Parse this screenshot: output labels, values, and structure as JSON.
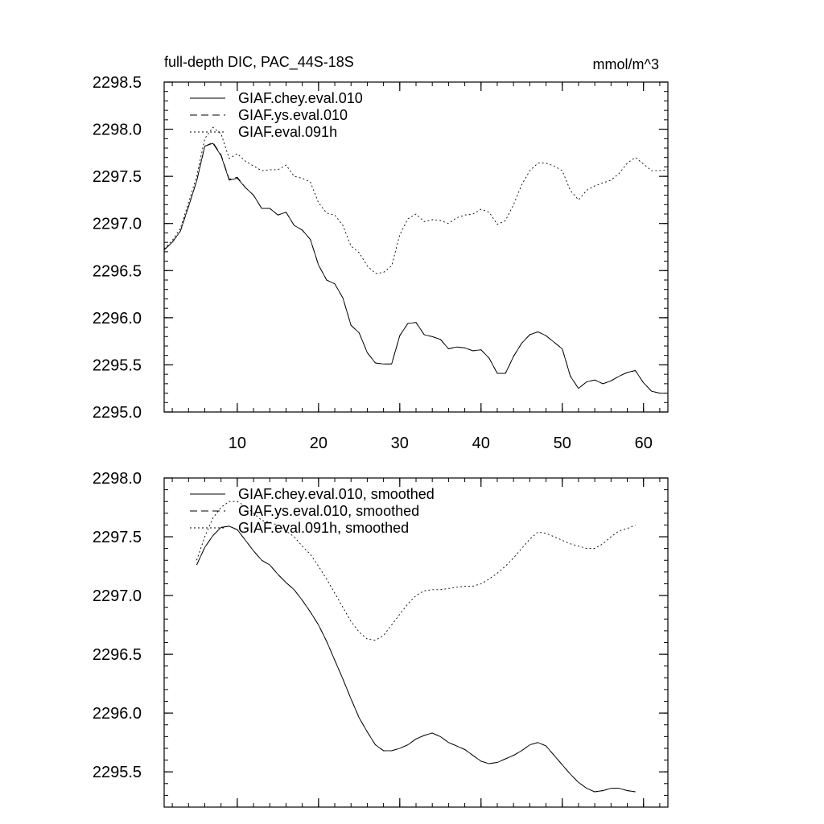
{
  "figure": {
    "title": "full-depth DIC, PAC_44S-18S",
    "units": "mmol/m^3"
  },
  "chart_data": [
    {
      "type": "line",
      "xlim": [
        1,
        63
      ],
      "ylim": [
        2295.0,
        2298.5
      ],
      "x_ticks": [
        10,
        20,
        30,
        40,
        50,
        60
      ],
      "x_tick_labels": [
        "10",
        "20",
        "30",
        "40",
        "50",
        "60"
      ],
      "y_ticks": [
        2295.0,
        2295.5,
        2296.0,
        2296.5,
        2297.0,
        2297.5,
        2298.0,
        2298.5
      ],
      "y_tick_labels": [
        "2295.0",
        "2295.5",
        "2296.0",
        "2296.5",
        "2297.0",
        "2297.5",
        "2298.0",
        "2298.5"
      ],
      "legend_position": "top-left",
      "series": [
        {
          "name": "GIAF.chey.eval.010",
          "style": "solid",
          "x": [
            1,
            2,
            3,
            4,
            5,
            6,
            7,
            8,
            9,
            10,
            11,
            12,
            13,
            14,
            15,
            16,
            17,
            18,
            19,
            20,
            21,
            22,
            23,
            24,
            25,
            26,
            27,
            28,
            29,
            30,
            31,
            32,
            33,
            34,
            35,
            36,
            37,
            38,
            39,
            40,
            41,
            42,
            43,
            44,
            45,
            46,
            47,
            48,
            49,
            50,
            51,
            52,
            53,
            54,
            55,
            56,
            57,
            58,
            59,
            60,
            61,
            62,
            63
          ],
          "values": [
            2296.72,
            2296.8,
            2296.92,
            2297.18,
            2297.45,
            2297.82,
            2297.85,
            2297.72,
            2297.46,
            2297.48,
            2297.38,
            2297.3,
            2297.16,
            2297.16,
            2297.09,
            2297.12,
            2296.98,
            2296.93,
            2296.83,
            2296.56,
            2296.4,
            2296.36,
            2296.21,
            2295.92,
            2295.84,
            2295.63,
            2295.52,
            2295.51,
            2295.51,
            2295.81,
            2295.94,
            2295.95,
            2295.82,
            2295.8,
            2295.77,
            2295.67,
            2295.69,
            2295.68,
            2295.65,
            2295.66,
            2295.57,
            2295.41,
            2295.41,
            2295.59,
            2295.73,
            2295.82,
            2295.85,
            2295.81,
            2295.74,
            2295.67,
            2295.38,
            2295.25,
            2295.32,
            2295.34,
            2295.3,
            2295.33,
            2295.38,
            2295.42,
            2295.44,
            2295.31,
            2295.22,
            2295.2,
            2295.2
          ]
        },
        {
          "name": "GIAF.ys.eval.010",
          "style": "dashed",
          "x": [
            1,
            2,
            3,
            4,
            5,
            6,
            7,
            8,
            9,
            10,
            11,
            12,
            13,
            14,
            15,
            16,
            17,
            18,
            19,
            20,
            21,
            22,
            23,
            24,
            25,
            26,
            27,
            28,
            29,
            30,
            31,
            32,
            33,
            34,
            35,
            36,
            37,
            38,
            39,
            40,
            41,
            42,
            43,
            44,
            45,
            46,
            47,
            48,
            49,
            50,
            51,
            52,
            53,
            54,
            55,
            56,
            57,
            58,
            59,
            60,
            61,
            62,
            63
          ],
          "values": [
            2296.72,
            2296.8,
            2296.92,
            2297.18,
            2297.45,
            2297.82,
            2297.86,
            2297.73,
            2297.47,
            2297.49,
            2297.38,
            2297.3,
            2297.16,
            2297.16,
            2297.09,
            2297.12,
            2296.98,
            2296.93,
            2296.83,
            2296.56,
            2296.4,
            2296.36,
            2296.21,
            2295.92,
            2295.84,
            2295.63,
            2295.52,
            2295.51,
            2295.51,
            2295.81,
            2295.94,
            2295.95,
            2295.82,
            2295.8,
            2295.77,
            2295.67,
            2295.69,
            2295.68,
            2295.65,
            2295.66,
            2295.57,
            2295.41,
            2295.41,
            2295.59,
            2295.73,
            2295.82,
            2295.85,
            2295.81,
            2295.74,
            2295.67,
            2295.38,
            2295.25,
            2295.32,
            2295.34,
            2295.3,
            2295.33,
            2295.38,
            2295.42,
            2295.44,
            2295.31,
            2295.22,
            2295.2,
            2295.2
          ]
        },
        {
          "name": "GIAF.eval.091h",
          "style": "dotted",
          "x": [
            1,
            2,
            3,
            4,
            5,
            6,
            7,
            8,
            9,
            10,
            11,
            12,
            13,
            14,
            15,
            16,
            17,
            18,
            19,
            20,
            21,
            22,
            23,
            24,
            25,
            26,
            27,
            28,
            29,
            30,
            31,
            32,
            33,
            34,
            35,
            36,
            37,
            38,
            39,
            40,
            41,
            42,
            43,
            44,
            45,
            46,
            47,
            48,
            49,
            50,
            51,
            52,
            53,
            54,
            55,
            56,
            57,
            58,
            59,
            60,
            61,
            62,
            63
          ],
          "values": [
            2296.73,
            2296.82,
            2296.95,
            2297.22,
            2297.5,
            2297.9,
            2298.02,
            2297.95,
            2297.69,
            2297.74,
            2297.66,
            2297.61,
            2297.56,
            2297.57,
            2297.57,
            2297.62,
            2297.5,
            2297.48,
            2297.44,
            2297.22,
            2297.11,
            2297.09,
            2296.98,
            2296.76,
            2296.69,
            2296.55,
            2296.47,
            2296.48,
            2296.55,
            2296.88,
            2297.05,
            2297.1,
            2297.02,
            2297.04,
            2297.03,
            2297.0,
            2297.06,
            2297.09,
            2297.1,
            2297.15,
            2297.12,
            2296.99,
            2297.03,
            2297.2,
            2297.41,
            2297.56,
            2297.64,
            2297.64,
            2297.61,
            2297.56,
            2297.35,
            2297.25,
            2297.35,
            2297.4,
            2297.43,
            2297.46,
            2297.53,
            2297.64,
            2297.7,
            2297.63,
            2297.56,
            2297.56,
            2297.57
          ]
        }
      ]
    },
    {
      "type": "line",
      "xlim": [
        1,
        63
      ],
      "ylim": [
        2295.2,
        2298.0
      ],
      "x_ticks": [
        10,
        20,
        30,
        40,
        50,
        60
      ],
      "x_tick_labels": [],
      "y_ticks": [
        2295.5,
        2296.0,
        2296.5,
        2297.0,
        2297.5,
        2298.0
      ],
      "y_tick_labels": [
        "2295.5",
        "2296.0",
        "2296.5",
        "2297.0",
        "2297.5",
        "2298.0"
      ],
      "legend_position": "top-left",
      "series": [
        {
          "name": "GIAF.chey.eval.010, smoothed",
          "style": "solid",
          "x": [
            5,
            6,
            7,
            8,
            9,
            10,
            11,
            12,
            13,
            14,
            15,
            16,
            17,
            18,
            19,
            20,
            21,
            22,
            23,
            24,
            25,
            26,
            27,
            28,
            29,
            30,
            31,
            32,
            33,
            34,
            35,
            36,
            37,
            38,
            39,
            40,
            41,
            42,
            43,
            44,
            45,
            46,
            47,
            48,
            49,
            50,
            51,
            52,
            53,
            54,
            55,
            56,
            57,
            58,
            59
          ],
          "values": [
            2297.26,
            2297.41,
            2297.51,
            2297.58,
            2297.59,
            2297.56,
            2297.47,
            2297.38,
            2297.3,
            2297.26,
            2297.18,
            2297.11,
            2297.05,
            2296.96,
            2296.86,
            2296.75,
            2296.61,
            2296.45,
            2296.29,
            2296.12,
            2295.96,
            2295.84,
            2295.73,
            2295.68,
            2295.68,
            2295.7,
            2295.73,
            2295.78,
            2295.81,
            2295.83,
            2295.8,
            2295.75,
            2295.72,
            2295.69,
            2295.64,
            2295.59,
            2295.57,
            2295.58,
            2295.61,
            2295.64,
            2295.68,
            2295.73,
            2295.75,
            2295.72,
            2295.64,
            2295.56,
            2295.48,
            2295.41,
            2295.36,
            2295.33,
            2295.34,
            2295.36,
            2295.36,
            2295.34,
            2295.33
          ]
        },
        {
          "name": "GIAF.ys.eval.010, smoothed",
          "style": "dashed",
          "x": [
            5,
            6,
            7,
            8,
            9,
            10,
            11,
            12,
            13,
            14,
            15,
            16,
            17,
            18,
            19,
            20,
            21,
            22,
            23,
            24,
            25,
            26,
            27,
            28,
            29,
            30,
            31,
            32,
            33,
            34,
            35,
            36,
            37,
            38,
            39,
            40,
            41,
            42,
            43,
            44,
            45,
            46,
            47,
            48,
            49,
            50,
            51,
            52,
            53,
            54,
            55,
            56,
            57,
            58,
            59
          ],
          "values": [
            2297.26,
            2297.41,
            2297.51,
            2297.58,
            2297.59,
            2297.56,
            2297.47,
            2297.38,
            2297.3,
            2297.26,
            2297.18,
            2297.11,
            2297.05,
            2296.96,
            2296.86,
            2296.75,
            2296.61,
            2296.45,
            2296.29,
            2296.12,
            2295.96,
            2295.84,
            2295.73,
            2295.68,
            2295.68,
            2295.7,
            2295.73,
            2295.78,
            2295.81,
            2295.83,
            2295.8,
            2295.75,
            2295.72,
            2295.69,
            2295.64,
            2295.59,
            2295.57,
            2295.58,
            2295.61,
            2295.64,
            2295.68,
            2295.73,
            2295.75,
            2295.72,
            2295.64,
            2295.56,
            2295.48,
            2295.41,
            2295.36,
            2295.33,
            2295.34,
            2295.36,
            2295.36,
            2295.34,
            2295.33
          ]
        },
        {
          "name": "GIAF.eval.091h, smoothed",
          "style": "dotted",
          "x": [
            5,
            6,
            7,
            8,
            9,
            10,
            11,
            12,
            13,
            14,
            15,
            16,
            17,
            18,
            19,
            20,
            21,
            22,
            23,
            24,
            25,
            26,
            27,
            28,
            29,
            30,
            31,
            32,
            33,
            34,
            35,
            36,
            37,
            38,
            39,
            40,
            41,
            42,
            43,
            44,
            45,
            46,
            47,
            48,
            49,
            50,
            51,
            52,
            53,
            54,
            55,
            56,
            57,
            58,
            59
          ],
          "values": [
            2297.3,
            2297.5,
            2297.66,
            2297.75,
            2297.8,
            2297.8,
            2297.76,
            2297.7,
            2297.64,
            2297.62,
            2297.6,
            2297.55,
            2297.5,
            2297.42,
            2297.35,
            2297.25,
            2297.14,
            2297.02,
            2296.9,
            2296.78,
            2296.69,
            2296.63,
            2296.62,
            2296.66,
            2296.75,
            2296.84,
            2296.93,
            2297.0,
            2297.04,
            2297.05,
            2297.05,
            2297.06,
            2297.07,
            2297.08,
            2297.08,
            2297.1,
            2297.14,
            2297.19,
            2297.25,
            2297.32,
            2297.4,
            2297.48,
            2297.54,
            2297.53,
            2297.5,
            2297.47,
            2297.44,
            2297.42,
            2297.4,
            2297.4,
            2297.44,
            2297.5,
            2297.55,
            2297.57,
            2297.6
          ]
        }
      ]
    }
  ]
}
